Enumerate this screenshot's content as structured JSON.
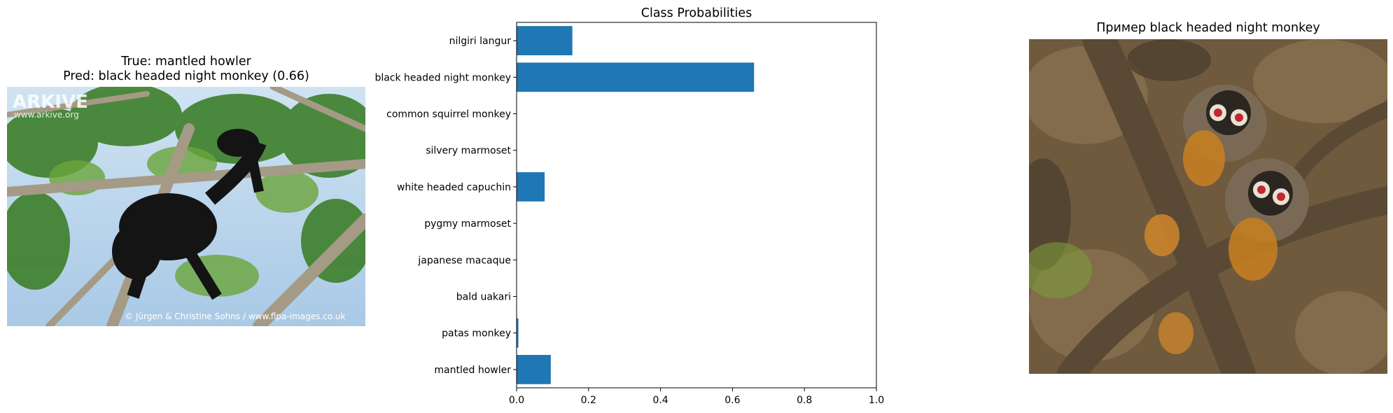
{
  "left_panel": {
    "title_line1": "True: mantled howler",
    "title_line2": "Pred: black headed night monkey (0.66)",
    "watermark_brand": "ARKIVE",
    "watermark_url": "www.arkive.org",
    "credit": "© Jürgen & Christine Sohns / www.flpa-images.co.uk"
  },
  "right_panel": {
    "title": "Пример black headed night monkey"
  },
  "chart_data": {
    "type": "bar",
    "orientation": "horizontal",
    "title": "Class Probabilities",
    "categories": [
      "mantled howler",
      "patas monkey",
      "bald uakari",
      "japanese macaque",
      "pygmy marmoset",
      "white headed capuchin",
      "silvery marmoset",
      "common squirrel monkey",
      "black headed night monkey",
      "nilgiri langur"
    ],
    "values": [
      0.095,
      0.005,
      0.0,
      0.0,
      0.0,
      0.078,
      0.0,
      0.0,
      0.66,
      0.155
    ],
    "xlim": [
      0,
      1.0
    ],
    "xticks": [
      "0.0",
      "0.2",
      "0.4",
      "0.6",
      "0.8",
      "1.0"
    ],
    "xtick_values": [
      0.0,
      0.2,
      0.4,
      0.6,
      0.8,
      1.0
    ],
    "bar_color": "#1f77b4",
    "grid": false
  }
}
